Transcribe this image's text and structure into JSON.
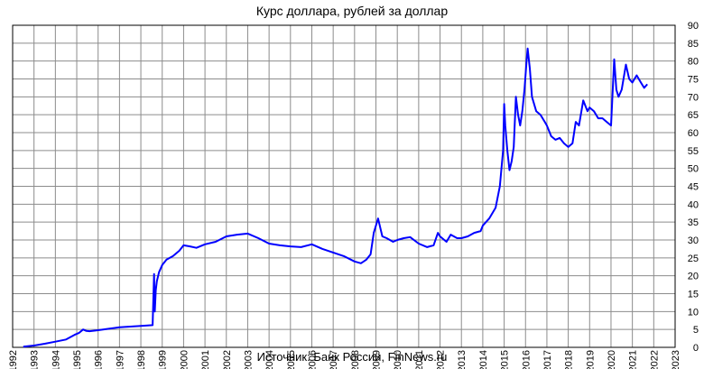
{
  "chart_data": {
    "type": "line",
    "title": "Курс доллара,  рублей  за доллар",
    "source": "Источник: Банк России, FinNews.ru",
    "xlabel": "",
    "ylabel": "",
    "xlim": [
      1992,
      2023
    ],
    "ylim": [
      0,
      90
    ],
    "grid": true,
    "y_axis_side": "right",
    "line_color": "#0000ff",
    "x_ticks": [
      "1992",
      "1993",
      "1994",
      "1995",
      "1996",
      "1997",
      "1998",
      "1999",
      "2000",
      "2001",
      "2002",
      "2003",
      "2004",
      "2005",
      "2006",
      "2007",
      "2008",
      "2009",
      "2010",
      "2011",
      "2012",
      "2013",
      "2014",
      "2015",
      "2016",
      "2017",
      "2018",
      "2019",
      "2020",
      "2021",
      "2022",
      "2023"
    ],
    "y_ticks": [
      "0",
      "5",
      "10",
      "15",
      "20",
      "25",
      "30",
      "35",
      "40",
      "45",
      "50",
      "55",
      "60",
      "65",
      "70",
      "75",
      "80",
      "85",
      "90"
    ],
    "series": [
      {
        "x": [
          1992.5,
          1993.0,
          1993.5,
          1994.0,
          1994.5,
          1994.9,
          1995.1,
          1995.3,
          1995.45,
          1995.6,
          1996.0,
          1996.5,
          1997.0,
          1997.5,
          1998.0,
          1998.55,
          1998.62,
          1998.65,
          1998.7,
          1998.75,
          1998.85,
          1999.0,
          1999.2,
          1999.5,
          1999.8,
          2000.0,
          2000.3,
          2000.6,
          2001.0,
          2001.5,
          2002.0,
          2002.5,
          2003.0,
          2003.5,
          2004.0,
          2004.5,
          2005.0,
          2005.5,
          2006.0,
          2006.5,
          2007.0,
          2007.5,
          2008.0,
          2008.3,
          2008.55,
          2008.75,
          2008.9,
          2009.1,
          2009.3,
          2009.5,
          2009.8,
          2010.0,
          2010.3,
          2010.6,
          2011.0,
          2011.4,
          2011.7,
          2011.9,
          2012.0,
          2012.3,
          2012.5,
          2012.8,
          2013.0,
          2013.3,
          2013.6,
          2013.9,
          2014.0,
          2014.3,
          2014.6,
          2014.8,
          2014.95,
          2015.0,
          2015.05,
          2015.15,
          2015.25,
          2015.35,
          2015.45,
          2015.55,
          2015.65,
          2015.75,
          2015.85,
          2015.95,
          2016.05,
          2016.1,
          2016.2,
          2016.3,
          2016.5,
          2016.7,
          2016.9,
          2017.0,
          2017.2,
          2017.4,
          2017.6,
          2017.8,
          2018.0,
          2018.2,
          2018.35,
          2018.5,
          2018.7,
          2018.9,
          2019.0,
          2019.2,
          2019.4,
          2019.6,
          2019.8,
          2020.0,
          2020.15,
          2020.25,
          2020.35,
          2020.5,
          2020.7,
          2020.85,
          2021.0,
          2021.2,
          2021.4,
          2021.55,
          2021.7
        ],
        "y": [
          0.2,
          0.5,
          1.0,
          1.6,
          2.2,
          3.5,
          4.0,
          5.0,
          4.6,
          4.5,
          4.8,
          5.2,
          5.6,
          5.8,
          6.0,
          6.2,
          20.5,
          10.0,
          16.0,
          18.5,
          21.0,
          23.0,
          24.5,
          25.5,
          27.0,
          28.5,
          28.2,
          27.8,
          28.8,
          29.5,
          31.0,
          31.5,
          31.8,
          30.5,
          29.0,
          28.5,
          28.2,
          28.0,
          28.8,
          27.5,
          26.5,
          25.5,
          24.0,
          23.5,
          24.5,
          26.0,
          32.0,
          36.0,
          31.0,
          30.5,
          29.5,
          30.0,
          30.5,
          30.8,
          29.0,
          28.0,
          28.5,
          32.0,
          31.0,
          29.5,
          31.5,
          30.5,
          30.5,
          31.0,
          32.0,
          32.5,
          34.0,
          36.0,
          39.0,
          45.0,
          55.0,
          68.0,
          62.0,
          55.0,
          49.5,
          52.0,
          56.0,
          70.0,
          65.0,
          62.0,
          66.0,
          72.0,
          80.0,
          83.5,
          78.0,
          70.0,
          66.0,
          65.0,
          63.0,
          62.0,
          59.0,
          58.0,
          58.5,
          57.0,
          56.0,
          57.0,
          63.0,
          62.0,
          69.0,
          66.0,
          67.0,
          66.0,
          64.0,
          64.0,
          63.0,
          62.0,
          80.5,
          72.0,
          70.0,
          72.0,
          79.0,
          75.0,
          74.0,
          76.0,
          74.0,
          72.5,
          73.5
        ]
      }
    ]
  }
}
